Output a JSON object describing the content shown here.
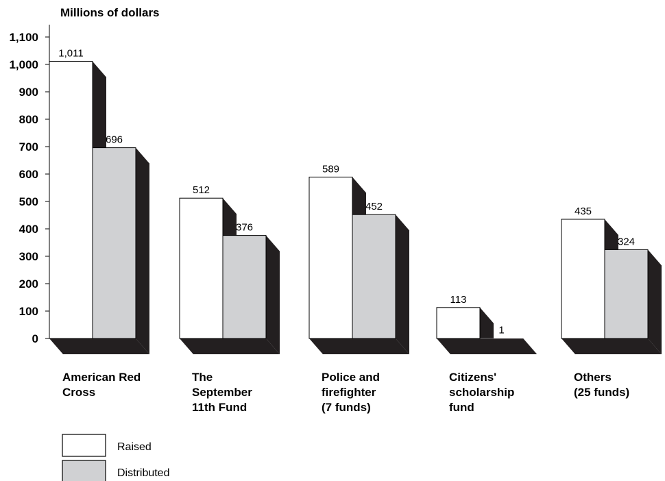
{
  "chart_data": {
    "type": "bar",
    "ylabel": "Millions of dollars",
    "ylim": [
      0,
      1100
    ],
    "yticks": [
      0,
      100,
      200,
      300,
      400,
      500,
      600,
      700,
      800,
      900,
      1000,
      1100
    ],
    "ytick_labels": [
      "0",
      "100",
      "200",
      "300",
      "400",
      "500",
      "600",
      "700",
      "800",
      "900",
      "1,000",
      "1,100"
    ],
    "categories": [
      [
        "American Red",
        "Cross"
      ],
      [
        "The",
        "September",
        "11th Fund"
      ],
      [
        "Police and",
        "firefighter",
        "(7 funds)"
      ],
      [
        "Citizens'",
        "scholarship",
        "fund"
      ],
      [
        "Others",
        "(25 funds)"
      ]
    ],
    "series": [
      {
        "name": "Raised",
        "color": "#ffffff",
        "values": [
          1011,
          512,
          589,
          113,
          435
        ],
        "labels": [
          "1,011",
          "512",
          "589",
          "113",
          "435"
        ]
      },
      {
        "name": "Distributed",
        "color": "#d0d1d3",
        "values": [
          696,
          376,
          452,
          1,
          324
        ],
        "labels": [
          "696",
          "376",
          "452",
          "1",
          "324"
        ]
      }
    ],
    "shadow_color": "#231f20",
    "legend_position": "bottom-left",
    "grid": false
  }
}
